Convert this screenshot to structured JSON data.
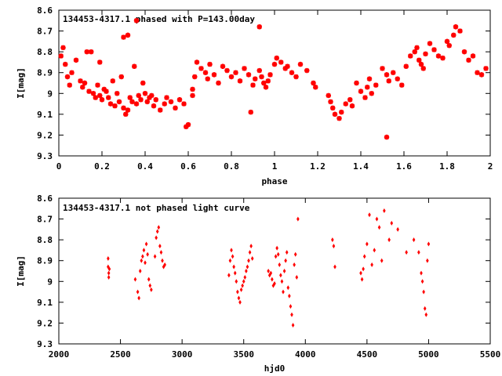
{
  "chart_data": [
    {
      "type": "scatter",
      "title": "134453-4317.1 phased with P=143.00day",
      "xlabel": "phase",
      "ylabel": "I[mag]",
      "xlim": [
        0,
        2
      ],
      "ylim": [
        8.6,
        9.3
      ],
      "y_inverted": true,
      "xticks": [
        0,
        0.2,
        0.4,
        0.6,
        0.8,
        1,
        1.2,
        1.4,
        1.6,
        1.8,
        2
      ],
      "xtick_labels": [
        "0",
        "0.2",
        "0.4",
        "0.6",
        "0.8",
        "1",
        "1.2",
        "1.4",
        "1.6",
        "1.8",
        "2"
      ],
      "yticks": [
        8.6,
        8.7,
        8.8,
        8.9,
        9,
        9.1,
        9.2,
        9.3
      ],
      "ytick_labels": [
        "8.6",
        "8.7",
        "8.8",
        "8.9",
        "9",
        "9.1",
        "9.2",
        "9.3"
      ],
      "grid": false,
      "marker_color": "#ff0000",
      "marker": "star",
      "x": [
        0.01,
        0.02,
        0.03,
        0.04,
        0.05,
        0.06,
        0.08,
        0.1,
        0.11,
        0.12,
        0.14,
        0.15,
        0.16,
        0.17,
        0.18,
        0.19,
        0.2,
        0.21,
        0.22,
        0.23,
        0.24,
        0.25,
        0.26,
        0.27,
        0.28,
        0.29,
        0.3,
        0.31,
        0.32,
        0.33,
        0.34,
        0.35,
        0.36,
        0.37,
        0.38,
        0.39,
        0.4,
        0.41,
        0.42,
        0.43,
        0.44,
        0.45,
        0.47,
        0.49,
        0.5,
        0.52,
        0.54,
        0.56,
        0.58,
        0.6,
        0.62,
        0.62,
        0.63,
        0.64,
        0.66,
        0.68,
        0.69,
        0.7,
        0.72,
        0.74,
        0.76,
        0.78,
        0.8,
        0.82,
        0.84,
        0.86,
        0.88,
        0.9,
        0.91,
        0.93,
        0.94,
        0.95,
        0.96,
        0.97,
        0.98,
        1.0,
        1.01,
        1.03,
        1.05,
        1.06,
        1.08,
        1.1,
        1.12,
        1.15,
        1.18,
        1.19,
        1.25,
        1.26,
        1.27,
        1.28,
        1.3,
        1.31,
        1.33,
        1.35,
        1.36,
        1.38,
        1.4,
        1.42,
        1.43,
        1.44,
        1.45,
        1.47,
        1.5,
        1.52,
        1.53,
        1.55,
        1.57,
        1.59,
        1.61,
        1.63,
        1.65,
        1.66,
        1.67,
        1.68,
        1.69,
        1.7,
        1.72,
        1.74,
        1.76,
        1.78,
        1.8,
        1.81,
        1.83,
        1.84,
        1.86,
        1.88,
        1.9,
        1.92,
        1.94,
        1.96,
        1.98,
        0.3,
        0.32,
        0.36,
        0.93,
        0.13,
        0.19,
        0.89,
        1.52,
        0.59
      ],
      "y": [
        8.82,
        8.78,
        8.86,
        8.92,
        8.96,
        8.9,
        8.84,
        8.94,
        8.97,
        8.95,
        8.99,
        8.8,
        9.0,
        9.02,
        8.96,
        9.01,
        9.03,
        8.98,
        8.99,
        9.02,
        9.05,
        8.94,
        9.06,
        9.0,
        9.04,
        8.92,
        9.07,
        9.1,
        9.08,
        9.02,
        9.04,
        8.87,
        9.05,
        9.01,
        9.03,
        8.95,
        9.0,
        9.04,
        9.02,
        9.01,
        9.06,
        9.03,
        9.08,
        9.05,
        9.02,
        9.04,
        9.07,
        9.03,
        9.05,
        9.15,
        8.98,
        9.01,
        8.92,
        8.85,
        8.88,
        8.9,
        8.93,
        8.86,
        8.91,
        8.95,
        8.87,
        8.89,
        8.92,
        8.9,
        8.94,
        8.88,
        8.91,
        8.96,
        8.93,
        8.89,
        8.92,
        8.95,
        8.97,
        8.94,
        8.91,
        8.86,
        8.83,
        8.85,
        8.88,
        8.87,
        8.9,
        8.92,
        8.86,
        8.89,
        8.95,
        8.97,
        9.01,
        9.04,
        9.07,
        9.1,
        9.12,
        9.09,
        9.05,
        9.03,
        9.06,
        8.95,
        8.99,
        9.02,
        8.97,
        8.93,
        9.0,
        8.96,
        8.88,
        8.91,
        8.94,
        8.9,
        8.93,
        8.96,
        8.87,
        8.82,
        8.8,
        8.78,
        8.84,
        8.86,
        8.88,
        8.81,
        8.76,
        8.79,
        8.82,
        8.83,
        8.75,
        8.77,
        8.72,
        8.68,
        8.7,
        8.8,
        8.84,
        8.82,
        8.9,
        8.91,
        8.88,
        8.73,
        8.72,
        8.65,
        8.68,
        8.8,
        8.85,
        9.09,
        9.21,
        9.16
      ],
      "notes": "individual points estimated from visual scatter"
    },
    {
      "type": "scatter",
      "title": "134453-4317.1 not phased light curve",
      "xlabel": "hjd0",
      "ylabel": "I[mag]",
      "xlim": [
        2000,
        5500
      ],
      "ylim": [
        8.6,
        9.3
      ],
      "y_inverted": true,
      "xticks": [
        2000,
        2500,
        3000,
        3500,
        4000,
        4500,
        5000,
        5500
      ],
      "xtick_labels": [
        "2000",
        "2500",
        "3000",
        "3500",
        "4000",
        "4500",
        "5000",
        "5500"
      ],
      "yticks": [
        8.6,
        8.7,
        8.8,
        8.9,
        9,
        9.1,
        9.2,
        9.3
      ],
      "ytick_labels": [
        "8.6",
        "8.7",
        "8.8",
        "8.9",
        "9",
        "9.1",
        "9.2",
        "9.3"
      ],
      "grid": false,
      "marker_color": "#ff0000",
      "marker": "diamond",
      "x": [
        2400,
        2400,
        2405,
        2405,
        2410,
        2620,
        2640,
        2650,
        2660,
        2670,
        2680,
        2690,
        2700,
        2710,
        2720,
        2730,
        2740,
        2750,
        2780,
        2790,
        2800,
        2810,
        2820,
        2830,
        2840,
        2850,
        2860,
        3380,
        3390,
        3400,
        3410,
        3420,
        3430,
        3440,
        3450,
        3460,
        3470,
        3480,
        3490,
        3500,
        3510,
        3520,
        3530,
        3540,
        3550,
        3560,
        3570,
        3700,
        3710,
        3720,
        3730,
        3740,
        3750,
        3760,
        3770,
        3780,
        3790,
        3800,
        3810,
        3820,
        3830,
        3840,
        3850,
        3860,
        3870,
        3880,
        3890,
        3900,
        3910,
        3920,
        3930,
        3940,
        4220,
        4230,
        4240,
        4450,
        4460,
        4470,
        4480,
        4500,
        4520,
        4540,
        4560,
        4580,
        4600,
        4620,
        4640,
        4680,
        4700,
        4750,
        4820,
        4880,
        4920,
        4940,
        4950,
        4960,
        4970,
        4980,
        4990,
        5000
      ],
      "y": [
        8.89,
        8.93,
        8.96,
        8.98,
        8.94,
        8.99,
        9.05,
        9.08,
        8.95,
        8.9,
        8.88,
        8.85,
        8.91,
        8.82,
        8.87,
        8.99,
        9.02,
        9.04,
        8.88,
        8.79,
        8.76,
        8.74,
        8.83,
        8.86,
        8.9,
        8.93,
        8.92,
        8.97,
        8.9,
        8.85,
        8.88,
        8.93,
        8.96,
        9.0,
        9.05,
        9.08,
        9.1,
        9.04,
        9.02,
        9.0,
        8.98,
        8.95,
        8.93,
        8.9,
        8.86,
        8.83,
        8.89,
        8.95,
        8.97,
        8.96,
        8.99,
        9.02,
        9.01,
        8.88,
        8.84,
        8.87,
        8.92,
        8.97,
        9.0,
        9.05,
        8.95,
        8.9,
        8.86,
        9.03,
        9.07,
        9.12,
        9.16,
        9.21,
        8.92,
        8.87,
        8.98,
        8.7,
        8.8,
        8.83,
        8.93,
        8.96,
        8.99,
        8.94,
        8.88,
        8.82,
        8.68,
        8.92,
        8.85,
        8.7,
        8.74,
        8.9,
        8.66,
        8.8,
        8.72,
        8.75,
        8.86,
        8.8,
        8.86,
        8.96,
        9.0,
        9.05,
        9.13,
        9.16,
        8.9,
        8.82
      ],
      "notes": "individual points estimated from visual scatter"
    }
  ]
}
